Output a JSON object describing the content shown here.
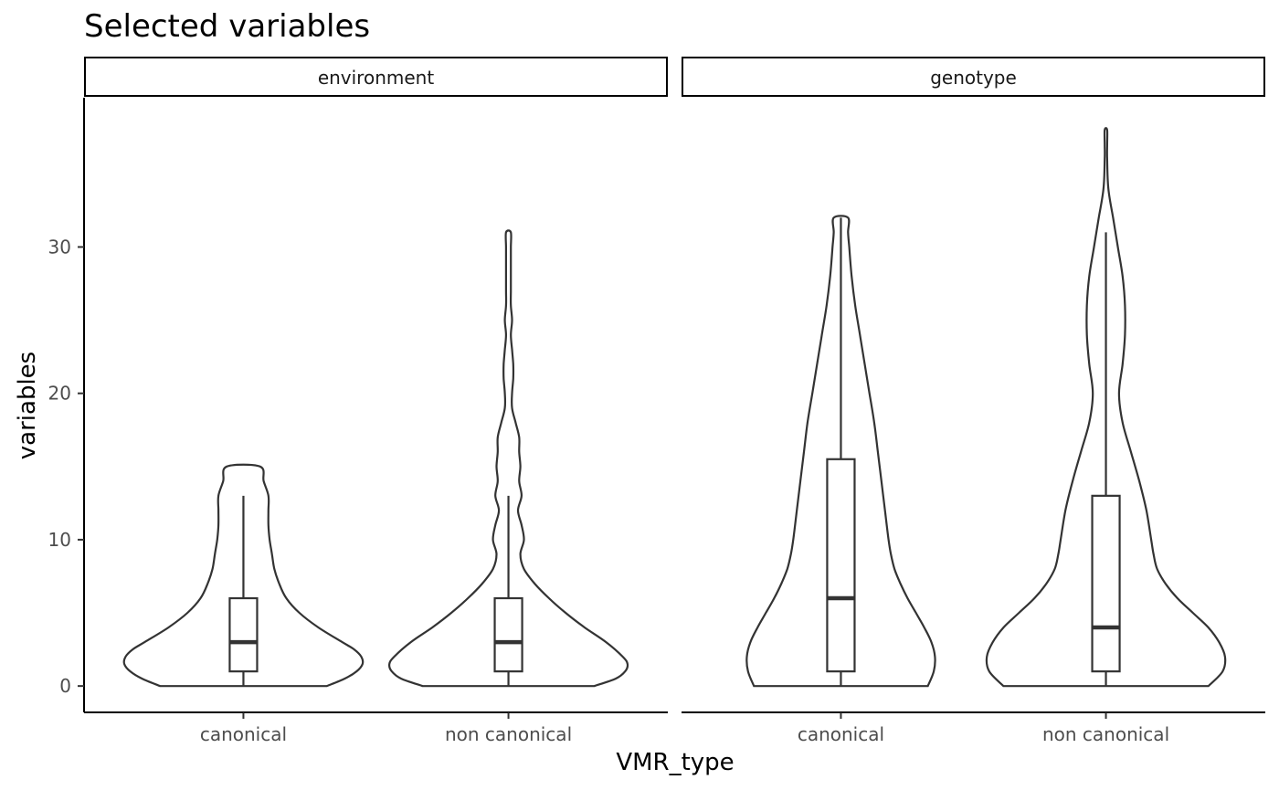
{
  "chart_data": {
    "type": "violin",
    "title": "Selected variables",
    "xlabel": "VMR_type",
    "ylabel": "variables",
    "ylim": [
      -1.8,
      40.2
    ],
    "yticks": [
      0,
      10,
      20,
      30
    ],
    "categories": [
      "canonical",
      "non canonical"
    ],
    "grid": false,
    "legend": "none",
    "panels": [
      {
        "label": "environment",
        "groups": [
          {
            "category": "canonical",
            "min": 0,
            "q1": 1,
            "median": 3,
            "q3": 6,
            "whisker_high": 13,
            "max": 15,
            "density": [
              [
                0,
                0.7
              ],
              [
                0.5,
                0.85
              ],
              [
                1,
                0.95
              ],
              [
                1.5,
                1.0
              ],
              [
                2,
                0.99
              ],
              [
                2.5,
                0.93
              ],
              [
                3,
                0.83
              ],
              [
                4,
                0.63
              ],
              [
                5,
                0.47
              ],
              [
                6,
                0.36
              ],
              [
                7,
                0.3
              ],
              [
                8,
                0.26
              ],
              [
                9,
                0.24
              ],
              [
                10,
                0.22
              ],
              [
                11,
                0.21
              ],
              [
                12,
                0.21
              ],
              [
                13,
                0.21
              ],
              [
                14,
                0.17
              ],
              [
                15,
                0.14
              ]
            ]
          },
          {
            "category": "non canonical",
            "min": 0,
            "q1": 1,
            "median": 3,
            "q3": 6,
            "whisker_high": 13,
            "max": 31,
            "density": [
              [
                0,
                0.72
              ],
              [
                0.5,
                0.9
              ],
              [
                1,
                0.98
              ],
              [
                1.5,
                1.0
              ],
              [
                2,
                0.96
              ],
              [
                3,
                0.82
              ],
              [
                4,
                0.64
              ],
              [
                5,
                0.48
              ],
              [
                6,
                0.34
              ],
              [
                7,
                0.22
              ],
              [
                8,
                0.13
              ],
              [
                9,
                0.1
              ],
              [
                10,
                0.13
              ],
              [
                11,
                0.11
              ],
              [
                12,
                0.08
              ],
              [
                13,
                0.11
              ],
              [
                14,
                0.09
              ],
              [
                15,
                0.1
              ],
              [
                16,
                0.09
              ],
              [
                17,
                0.09
              ],
              [
                18,
                0.06
              ],
              [
                19,
                0.03
              ],
              [
                20,
                0.03
              ],
              [
                21,
                0.04
              ],
              [
                22,
                0.04
              ],
              [
                23,
                0.03
              ],
              [
                24,
                0.02
              ],
              [
                25,
                0.03
              ],
              [
                26,
                0.02
              ],
              [
                27,
                0.02
              ],
              [
                28,
                0.02
              ],
              [
                29,
                0.02
              ],
              [
                30,
                0.02
              ],
              [
                31,
                0.02
              ]
            ]
          }
        ]
      },
      {
        "label": "genotype",
        "groups": [
          {
            "category": "canonical",
            "min": 0,
            "q1": 1,
            "median": 6,
            "q3": 15.5,
            "whisker_high": 32,
            "max": 32,
            "density": [
              [
                0,
                0.73
              ],
              [
                1,
                0.78
              ],
              [
                2,
                0.79
              ],
              [
                3,
                0.76
              ],
              [
                4,
                0.7
              ],
              [
                5,
                0.63
              ],
              [
                6,
                0.56
              ],
              [
                7,
                0.5
              ],
              [
                8,
                0.45
              ],
              [
                9,
                0.42
              ],
              [
                10,
                0.4
              ],
              [
                12,
                0.37
              ],
              [
                14,
                0.34
              ],
              [
                16,
                0.31
              ],
              [
                18,
                0.28
              ],
              [
                20,
                0.24
              ],
              [
                22,
                0.2
              ],
              [
                24,
                0.16
              ],
              [
                26,
                0.12
              ],
              [
                28,
                0.09
              ],
              [
                30,
                0.07
              ],
              [
                31,
                0.06
              ],
              [
                32,
                0.06
              ]
            ]
          },
          {
            "category": "non canonical",
            "min": 0,
            "q1": 1,
            "median": 4,
            "q3": 13,
            "whisker_high": 31,
            "max": 38,
            "density": [
              [
                0,
                0.86
              ],
              [
                1,
                0.98
              ],
              [
                2,
                1.0
              ],
              [
                3,
                0.95
              ],
              [
                4,
                0.86
              ],
              [
                5,
                0.73
              ],
              [
                6,
                0.6
              ],
              [
                7,
                0.5
              ],
              [
                8,
                0.43
              ],
              [
                9,
                0.4
              ],
              [
                10,
                0.38
              ],
              [
                12,
                0.34
              ],
              [
                14,
                0.28
              ],
              [
                16,
                0.21
              ],
              [
                18,
                0.14
              ],
              [
                20,
                0.11
              ],
              [
                22,
                0.14
              ],
              [
                24,
                0.16
              ],
              [
                26,
                0.16
              ],
              [
                28,
                0.14
              ],
              [
                30,
                0.1
              ],
              [
                32,
                0.06
              ],
              [
                34,
                0.02
              ],
              [
                36,
                0.01
              ],
              [
                37,
                0.01
              ],
              [
                38,
                0.01
              ]
            ]
          }
        ]
      }
    ]
  }
}
